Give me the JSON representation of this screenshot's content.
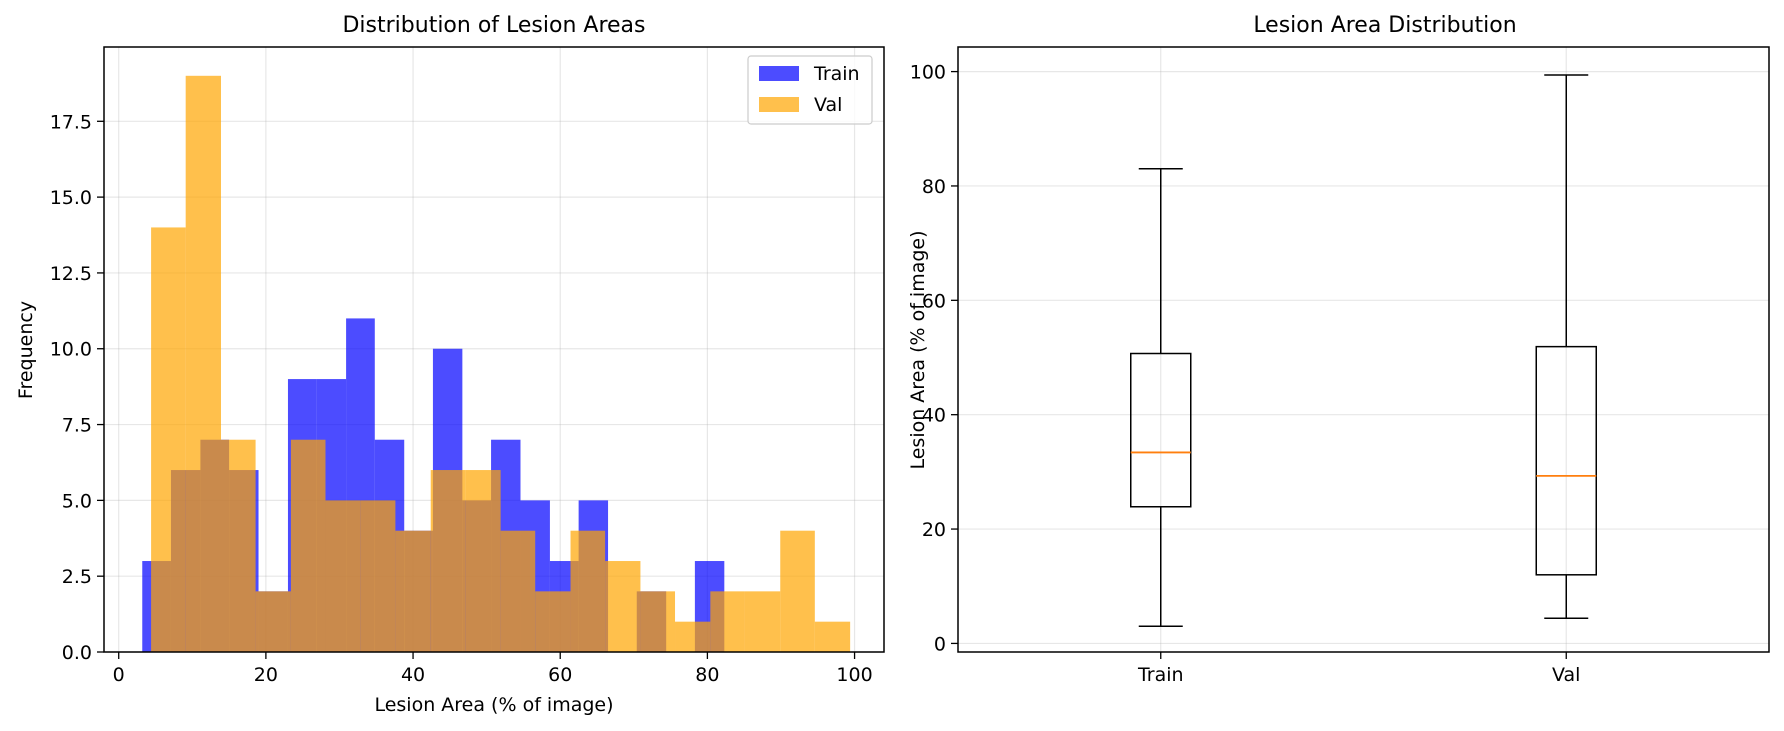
{
  "chart_data": [
    {
      "type": "histogram",
      "title": "Distribution of Lesion Areas",
      "xlabel": "Lesion Area (% of image)",
      "ylabel": "Frequency",
      "xlim": [
        -2,
        104
      ],
      "ylim": [
        0,
        19.95
      ],
      "xticks": [
        0,
        20,
        40,
        60,
        80,
        100
      ],
      "xtick_labels": [
        "0",
        "20",
        "40",
        "60",
        "80",
        "100"
      ],
      "yticks": [
        0,
        2.5,
        5,
        7.5,
        10,
        12.5,
        15,
        17.5
      ],
      "ytick_labels": [
        "0.0",
        "2.5",
        "5.0",
        "7.5",
        "10.0",
        "12.5",
        "15.0",
        "17.5"
      ],
      "grid": true,
      "legend": "top-right",
      "series": [
        {
          "name": "Train",
          "color": "#0000ff",
          "alpha": 0.7,
          "bins": [
            {
              "x0": 3.2,
              "x1": 7.1,
              "count": 3
            },
            {
              "x0": 7.1,
              "x1": 11.1,
              "count": 6
            },
            {
              "x0": 11.1,
              "x1": 15.0,
              "count": 7
            },
            {
              "x0": 15.0,
              "x1": 19.0,
              "count": 6
            },
            {
              "x0": 19.0,
              "x1": 23.0,
              "count": 2
            },
            {
              "x0": 23.0,
              "x1": 26.9,
              "count": 9
            },
            {
              "x0": 26.9,
              "x1": 30.9,
              "count": 9
            },
            {
              "x0": 30.9,
              "x1": 34.8,
              "count": 11
            },
            {
              "x0": 34.8,
              "x1": 38.8,
              "count": 7
            },
            {
              "x0": 38.8,
              "x1": 42.7,
              "count": 4
            },
            {
              "x0": 42.7,
              "x1": 46.7,
              "count": 10
            },
            {
              "x0": 46.7,
              "x1": 50.6,
              "count": 5
            },
            {
              "x0": 50.6,
              "x1": 54.6,
              "count": 7
            },
            {
              "x0": 54.6,
              "x1": 58.6,
              "count": 5
            },
            {
              "x0": 58.6,
              "x1": 62.5,
              "count": 3
            },
            {
              "x0": 62.5,
              "x1": 66.5,
              "count": 5
            },
            {
              "x0": 66.5,
              "x1": 70.4,
              "count": 0
            },
            {
              "x0": 70.4,
              "x1": 74.4,
              "count": 2
            },
            {
              "x0": 74.4,
              "x1": 78.3,
              "count": 0
            },
            {
              "x0": 78.3,
              "x1": 82.3,
              "count": 3
            }
          ]
        },
        {
          "name": "Val",
          "color": "#ffa500",
          "alpha": 0.7,
          "bins": [
            {
              "x0": 4.4,
              "x1": 9.1,
              "count": 14
            },
            {
              "x0": 9.1,
              "x1": 13.9,
              "count": 19
            },
            {
              "x0": 13.9,
              "x1": 18.6,
              "count": 7
            },
            {
              "x0": 18.6,
              "x1": 23.4,
              "count": 2
            },
            {
              "x0": 23.4,
              "x1": 28.1,
              "count": 7
            },
            {
              "x0": 28.1,
              "x1": 32.9,
              "count": 5
            },
            {
              "x0": 32.9,
              "x1": 37.6,
              "count": 5
            },
            {
              "x0": 37.6,
              "x1": 42.4,
              "count": 4
            },
            {
              "x0": 42.4,
              "x1": 47.1,
              "count": 6
            },
            {
              "x0": 47.1,
              "x1": 51.9,
              "count": 6
            },
            {
              "x0": 51.9,
              "x1": 56.6,
              "count": 4
            },
            {
              "x0": 56.6,
              "x1": 61.4,
              "count": 2
            },
            {
              "x0": 61.4,
              "x1": 66.1,
              "count": 4
            },
            {
              "x0": 66.1,
              "x1": 70.9,
              "count": 3
            },
            {
              "x0": 70.9,
              "x1": 75.6,
              "count": 2
            },
            {
              "x0": 75.6,
              "x1": 80.4,
              "count": 1
            },
            {
              "x0": 80.4,
              "x1": 85.1,
              "count": 2
            },
            {
              "x0": 85.1,
              "x1": 89.9,
              "count": 2
            },
            {
              "x0": 89.9,
              "x1": 94.6,
              "count": 4
            },
            {
              "x0": 94.6,
              "x1": 99.4,
              "count": 1
            }
          ]
        }
      ]
    },
    {
      "type": "box",
      "title": "Lesion Area Distribution",
      "xlabel": "",
      "ylabel": "Lesion Area (% of image)",
      "ylim": [
        -1.5,
        104.3
      ],
      "yticks": [
        0,
        20,
        40,
        60,
        80,
        100
      ],
      "ytick_labels": [
        "0",
        "20",
        "40",
        "60",
        "80",
        "100"
      ],
      "categories": [
        "Train",
        "Val"
      ],
      "grid": true,
      "median_color": "#ff7f0e",
      "boxes": [
        {
          "name": "Train",
          "whisker_low": 3.0,
          "q1": 23.9,
          "median": 33.4,
          "q3": 50.7,
          "whisker_high": 83.0
        },
        {
          "name": "Val",
          "whisker_low": 4.4,
          "q1": 12.0,
          "median": 29.3,
          "q3": 51.9,
          "whisker_high": 99.4
        }
      ]
    }
  ]
}
